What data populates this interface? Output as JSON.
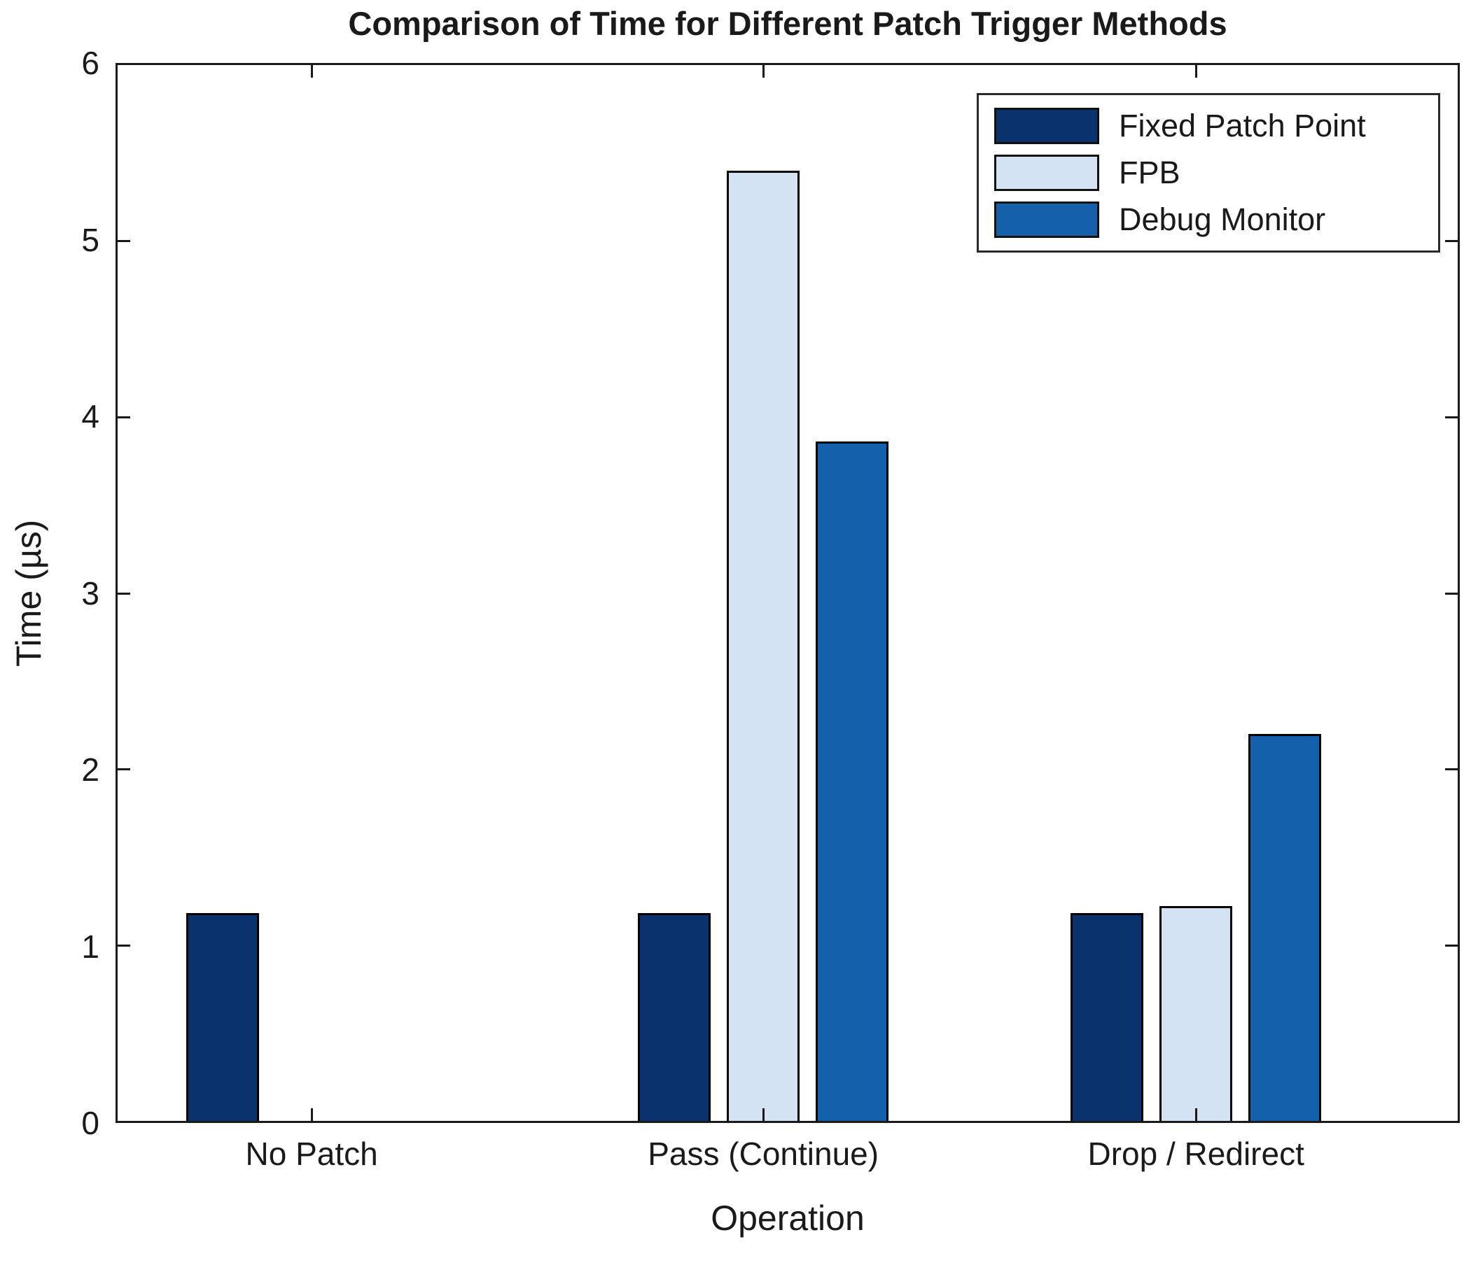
{
  "chart_data": {
    "type": "bar",
    "title": "Comparison of Time for Different Patch Trigger Methods",
    "xlabel": "Operation",
    "ylabel": "Time (µs)",
    "categories": [
      "No Patch",
      "Pass (Continue)",
      "Drop / Redirect"
    ],
    "series": [
      {
        "name": "Fixed Patch Point",
        "color": "#0A336E",
        "values": [
          1.18,
          1.18,
          1.18
        ]
      },
      {
        "name": "FPB",
        "color": "#D3E3F3",
        "values": [
          0,
          5.4,
          1.22
        ]
      },
      {
        "name": "Debug Monitor",
        "color": "#1560AB",
        "values": [
          0,
          3.86,
          2.2
        ]
      }
    ],
    "ylim": [
      0,
      6
    ],
    "yticks": [
      0,
      1,
      2,
      3,
      4,
      5,
      6
    ],
    "grid": false,
    "legend_position": "upper-right",
    "bar_edge_color": "#000000",
    "axis_color": "#1a1a1a",
    "background_color": "#ffffff"
  }
}
